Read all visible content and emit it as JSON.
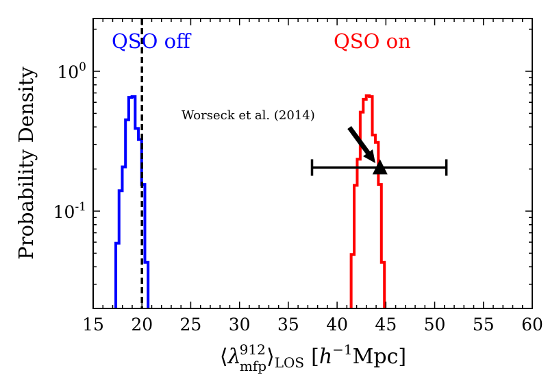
{
  "chart_data": {
    "type": "histogram",
    "title": "",
    "xlabel": {
      "main": "λ",
      "sup": "912",
      "sub": "mfp",
      "los": "LOS",
      "unit_open": "[",
      "h": "h",
      "h_exp": "−1",
      "unit": "Mpc]"
    },
    "ylabel": "Probability Density",
    "xlim": [
      15,
      60
    ],
    "ylim": [
      0.02,
      2.4
    ],
    "yscale": "log",
    "grid": false,
    "x_ticks": [
      "15",
      "20",
      "25",
      "30",
      "35",
      "40",
      "45",
      "50",
      "55",
      "60"
    ],
    "y_ticks": [
      {
        "base": "10",
        "exp": "0",
        "value": 1
      },
      {
        "base": "10",
        "exp": "-1",
        "value": 0.1
      }
    ],
    "series": [
      {
        "name": "QSO off",
        "color": "#0000ff",
        "bin_start": 17.32,
        "bin_width": 0.331,
        "values": [
          0.059,
          0.14,
          0.207,
          0.45,
          0.65,
          0.66,
          0.39,
          0.325,
          0.155,
          0.043
        ]
      },
      {
        "name": "QSO on",
        "color": "#ff0000",
        "bin_start": 41.44,
        "bin_width": 0.31,
        "values": [
          0.049,
          0.153,
          0.235,
          0.51,
          0.63,
          0.67,
          0.66,
          0.35,
          0.31,
          0.155,
          0.043
        ]
      }
    ],
    "vline": {
      "x": 20,
      "style": "dashed",
      "color": "#000000"
    },
    "measurement": {
      "label": "Worseck et al. (2014)",
      "x": 44.4,
      "y": 0.205,
      "xerr": [
        37.43,
        51.2
      ],
      "marker": "triangle",
      "color": "#000000"
    }
  }
}
